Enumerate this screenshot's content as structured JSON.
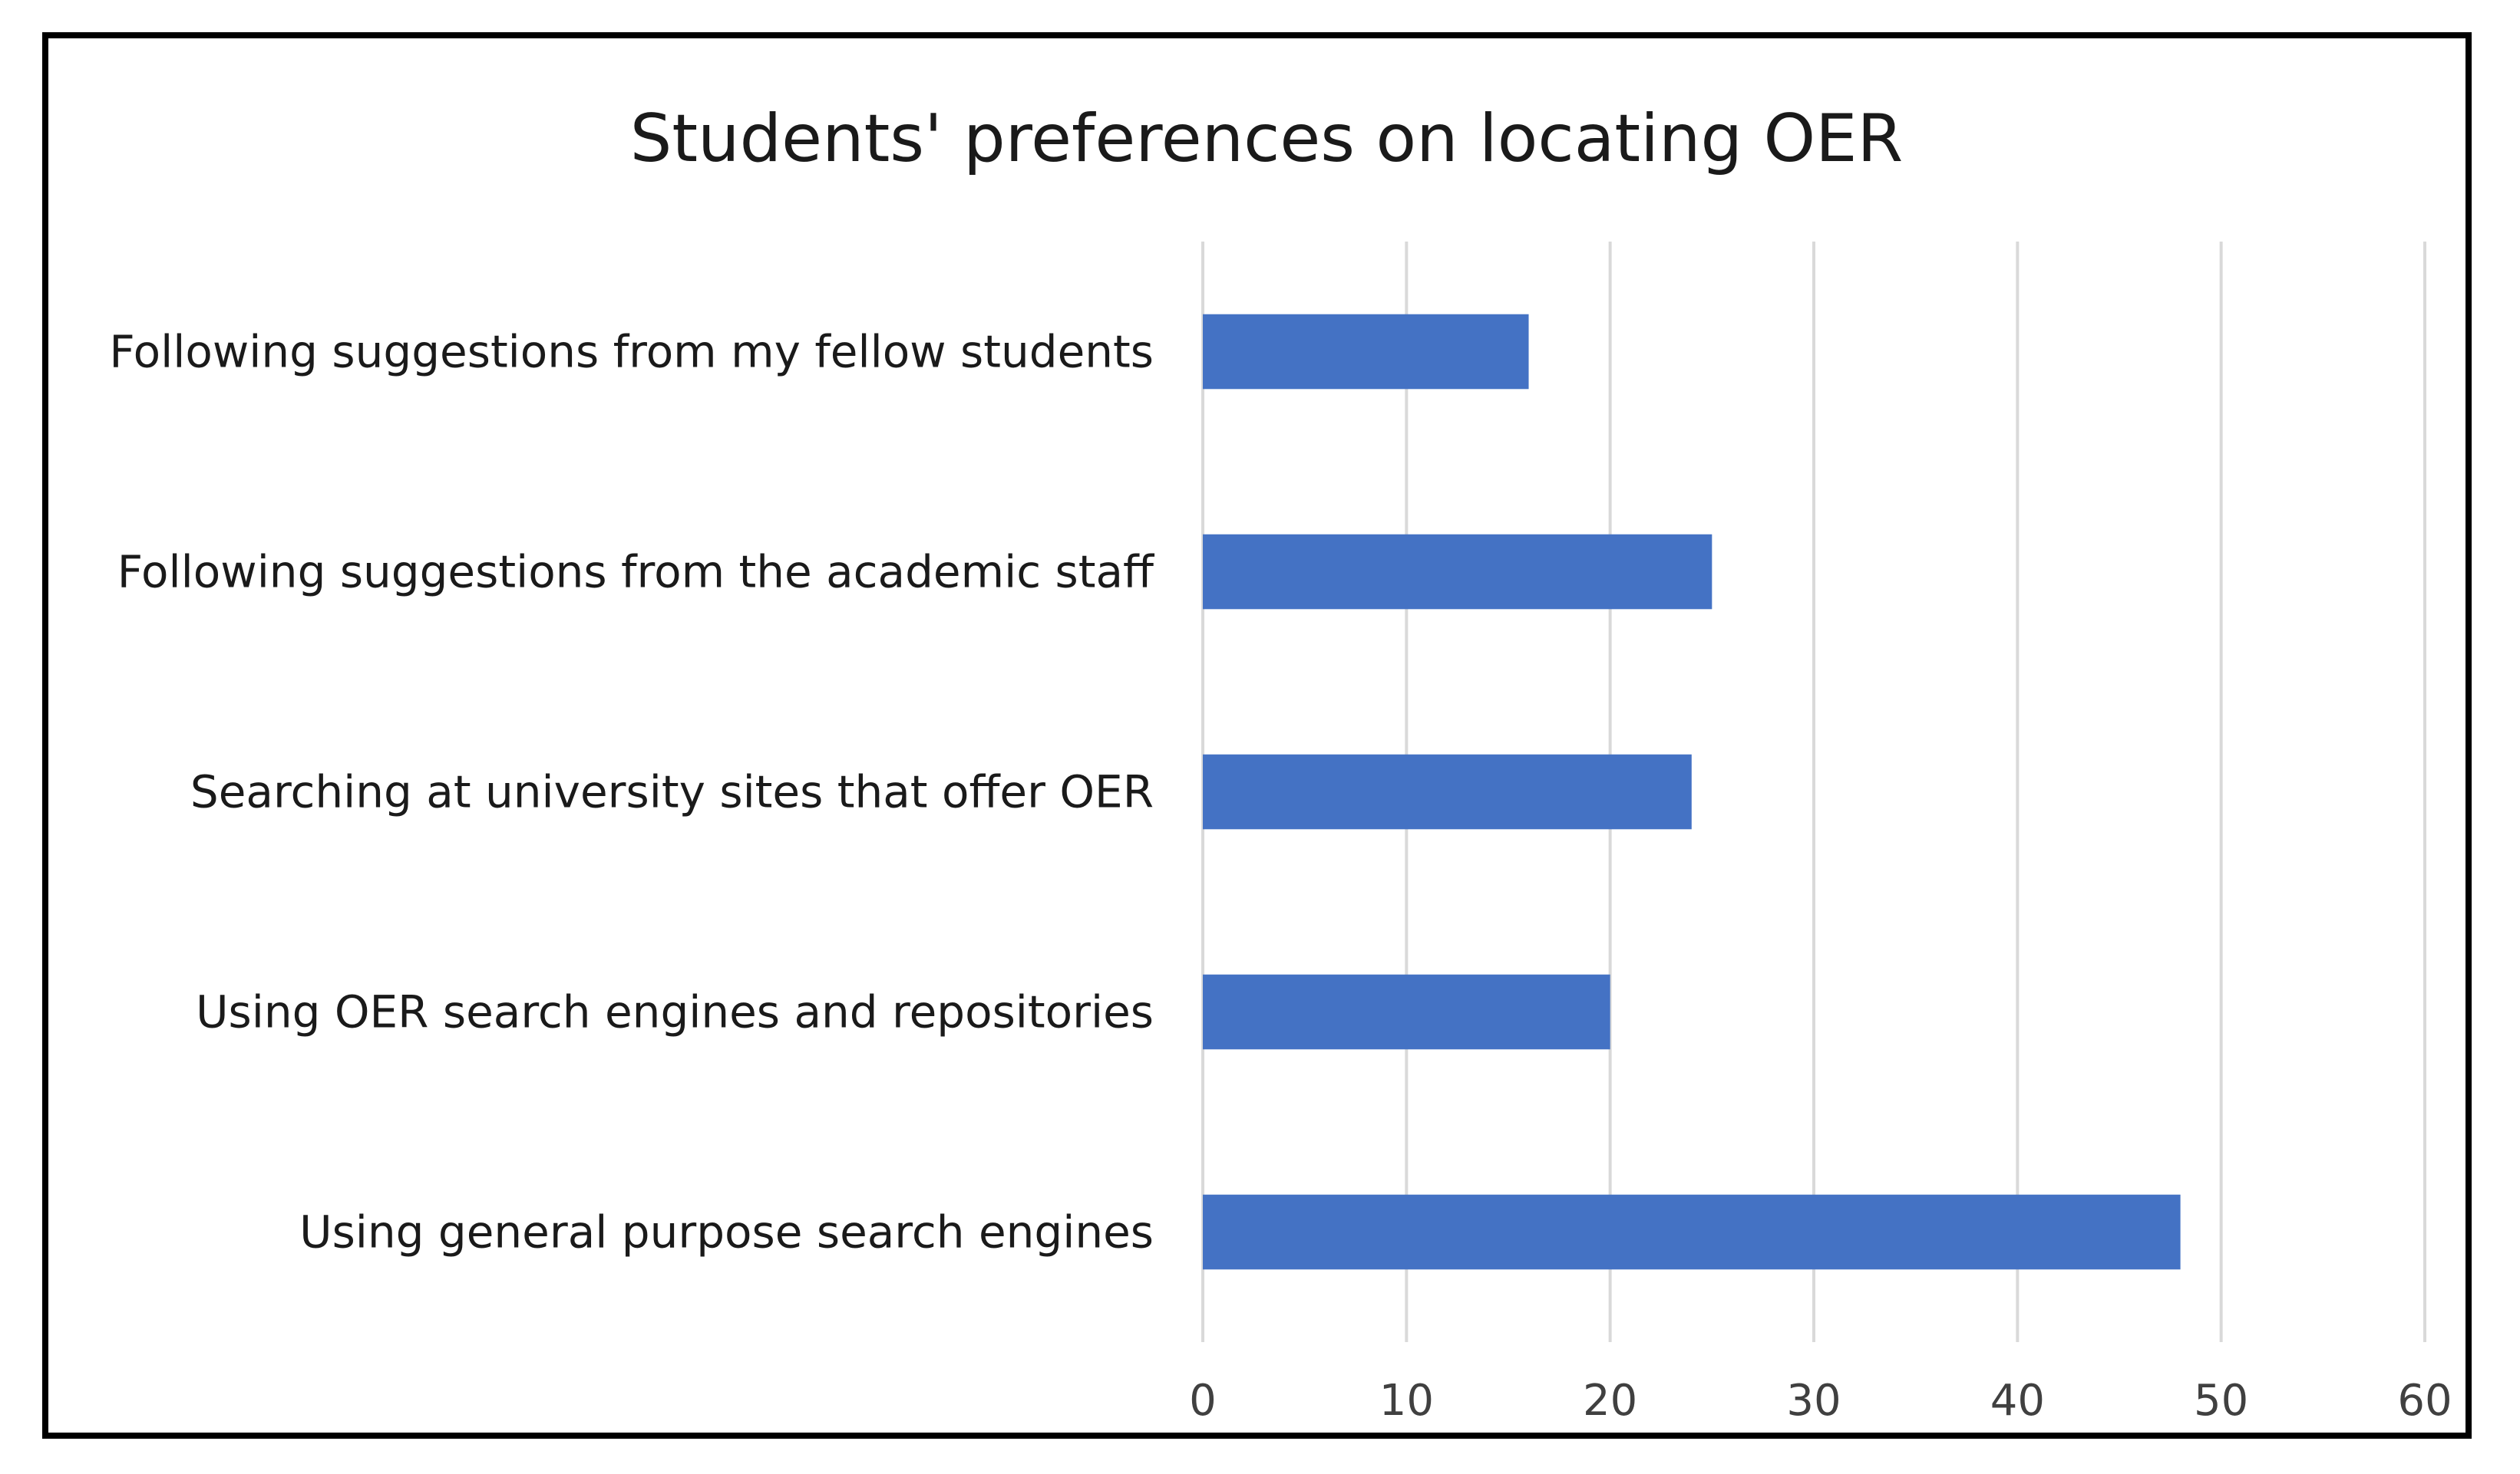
{
  "chart_data": {
    "type": "bar",
    "orientation": "horizontal",
    "title": "Students' preferences on locating OER",
    "xlabel": "",
    "ylabel": "",
    "categories": [
      "Following suggestions from my fellow students",
      "Following suggestions from the academic staff",
      "Searching at university sites that offer OER",
      "Using OER search engines and repositories",
      "Using general purpose search engines"
    ],
    "values": [
      16,
      25,
      24,
      20,
      48
    ],
    "xlim": [
      0,
      60
    ],
    "xticks": [
      0,
      10,
      20,
      30,
      40,
      50,
      60
    ],
    "grid": true,
    "legend": "none",
    "bar_color": "#4472c4"
  }
}
